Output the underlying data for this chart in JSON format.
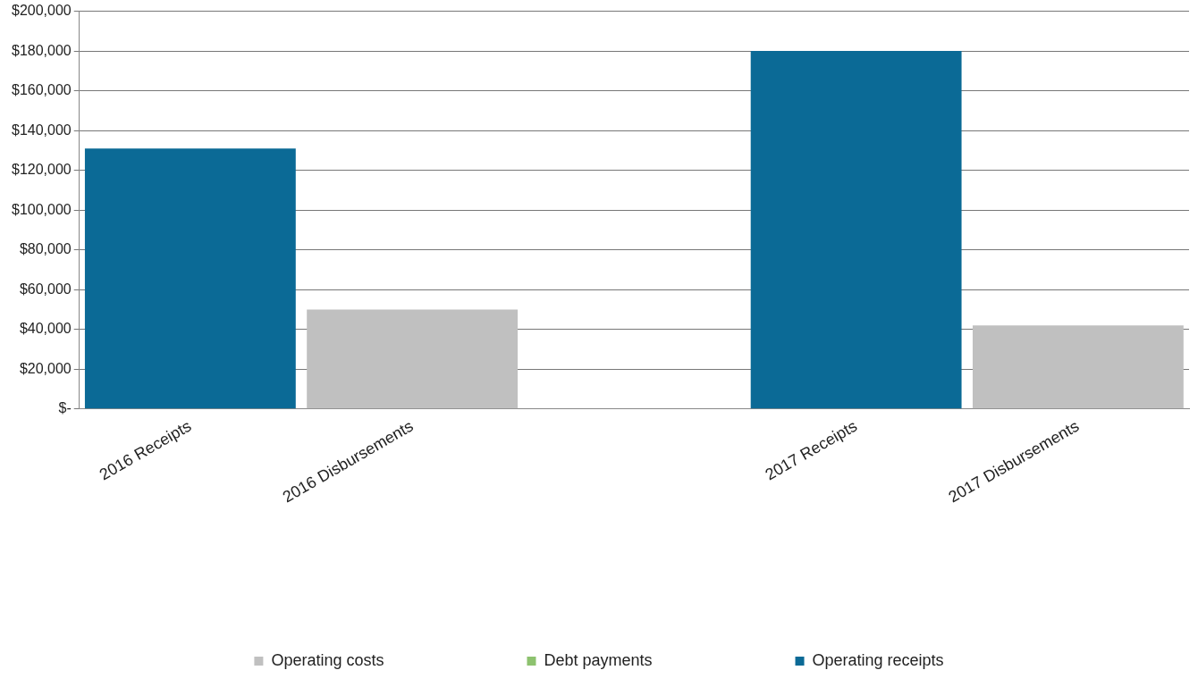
{
  "chart_data": {
    "type": "bar",
    "stacked": true,
    "categories": [
      "2016 Receipts",
      "2016 Disbursements",
      null,
      "2017 Receipts",
      "2017 Disbursements"
    ],
    "series": [
      {
        "name": "Operating costs",
        "color": "#c0c0c0",
        "values": [
          null,
          50000,
          null,
          null,
          42000
        ]
      },
      {
        "name": "Debt payments",
        "color": "#8dc26f",
        "values": [
          null,
          null,
          null,
          null,
          null
        ]
      },
      {
        "name": "Operating receipts",
        "color": "#0b6a96",
        "values": [
          131000,
          null,
          null,
          180000,
          null
        ]
      }
    ],
    "ylim": [
      0,
      200000
    ],
    "yticks": [
      {
        "value": 0,
        "label": "$-"
      },
      {
        "value": 20000,
        "label": "$20,000"
      },
      {
        "value": 40000,
        "label": "$40,000"
      },
      {
        "value": 60000,
        "label": "$60,000"
      },
      {
        "value": 80000,
        "label": "$80,000"
      },
      {
        "value": 100000,
        "label": "$100,000"
      },
      {
        "value": 120000,
        "label": "$120,000"
      },
      {
        "value": 140000,
        "label": "$140,000"
      },
      {
        "value": 160000,
        "label": "$160,000"
      },
      {
        "value": 180000,
        "label": "$180,000"
      },
      {
        "value": 200000,
        "label": "$200,000"
      }
    ],
    "grid": "y",
    "legend": "bottom"
  }
}
